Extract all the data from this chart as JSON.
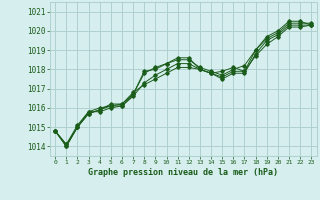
{
  "xlabel": "Graphe pression niveau de la mer (hPa)",
  "bg_color": "#d6eeee",
  "grid_color": "#b0d0d0",
  "line_color": "#1a5c1a",
  "text_color": "#1a5c1a",
  "xlim": [
    -0.5,
    23.5
  ],
  "ylim": [
    1013.5,
    1021.5
  ],
  "yticks": [
    1014,
    1015,
    1016,
    1017,
    1018,
    1019,
    1020,
    1021
  ],
  "xticks": [
    0,
    1,
    2,
    3,
    4,
    5,
    6,
    7,
    8,
    9,
    10,
    11,
    12,
    13,
    14,
    15,
    16,
    17,
    18,
    19,
    20,
    21,
    22,
    23
  ],
  "series": [
    [
      1014.8,
      1014.0,
      1015.0,
      1015.8,
      1015.8,
      1016.0,
      1016.1,
      1016.7,
      1017.8,
      1018.1,
      1018.3,
      1018.6,
      1018.6,
      1018.0,
      1017.8,
      1017.9,
      1018.1,
      1017.9,
      1019.0,
      1019.7,
      1020.0,
      1020.5,
      1020.5,
      1020.3
    ],
    [
      1014.8,
      1014.0,
      1015.0,
      1015.7,
      1015.9,
      1016.2,
      1016.2,
      1016.8,
      1017.2,
      1017.5,
      1017.8,
      1018.1,
      1018.1,
      1018.0,
      1017.8,
      1017.6,
      1017.9,
      1017.9,
      1018.7,
      1019.3,
      1019.7,
      1020.2,
      1020.2,
      1020.3
    ],
    [
      1014.8,
      1014.1,
      1015.0,
      1015.7,
      1015.9,
      1016.1,
      1016.1,
      1016.6,
      1017.3,
      1017.7,
      1018.0,
      1018.3,
      1018.3,
      1018.0,
      1017.8,
      1017.5,
      1017.8,
      1017.8,
      1018.8,
      1019.5,
      1019.8,
      1020.3,
      1020.3,
      1020.3
    ],
    [
      1014.8,
      1014.1,
      1015.1,
      1015.8,
      1016.0,
      1016.1,
      1016.2,
      1016.7,
      1017.9,
      1018.0,
      1018.3,
      1018.5,
      1018.5,
      1018.1,
      1017.9,
      1017.7,
      1018.0,
      1018.2,
      1019.0,
      1019.6,
      1019.9,
      1020.4,
      1020.4,
      1020.4
    ]
  ]
}
